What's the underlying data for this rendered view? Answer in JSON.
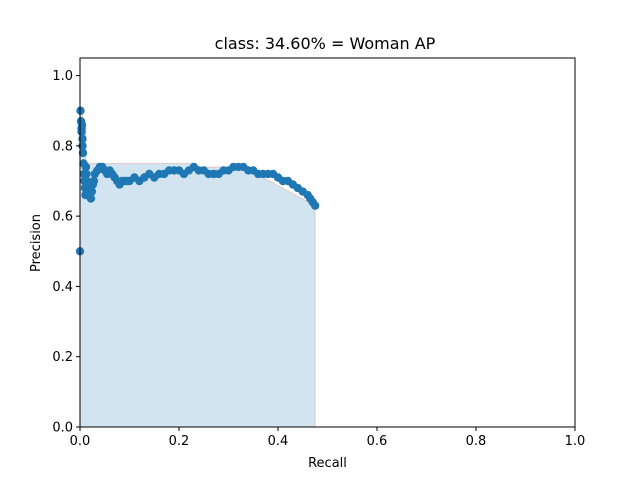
{
  "chart_data": {
    "type": "scatter",
    "title": "class: 34.60% = Woman AP",
    "xlabel": "Recall",
    "ylabel": "Precision",
    "xlim": [
      0,
      1
    ],
    "ylim": [
      0,
      1.05
    ],
    "xticks": [
      "0.0",
      "0.2",
      "0.4",
      "0.6",
      "0.8",
      "1.0"
    ],
    "yticks": [
      "0.0",
      "0.2",
      "0.4",
      "0.6",
      "0.8",
      "1.0"
    ],
    "grid": false,
    "colors": {
      "points": "#1f77b4",
      "fill": "#1f77b4",
      "step_line": "#d62728"
    },
    "series": [
      {
        "type": "scatter",
        "x": [
          0.0,
          0.001,
          0.002,
          0.003,
          0.003,
          0.004,
          0.005,
          0.005,
          0.006,
          0.007,
          0.008,
          0.009,
          0.01,
          0.011,
          0.012,
          0.013,
          0.014,
          0.016,
          0.018,
          0.02,
          0.022,
          0.024,
          0.026,
          0.028,
          0.03,
          0.035,
          0.04,
          0.045,
          0.05,
          0.055,
          0.06,
          0.065,
          0.07,
          0.075,
          0.08,
          0.085,
          0.09,
          0.095,
          0.1,
          0.11,
          0.12,
          0.13,
          0.14,
          0.15,
          0.16,
          0.17,
          0.18,
          0.19,
          0.2,
          0.21,
          0.22,
          0.23,
          0.24,
          0.25,
          0.26,
          0.27,
          0.28,
          0.29,
          0.3,
          0.31,
          0.32,
          0.33,
          0.34,
          0.35,
          0.36,
          0.37,
          0.38,
          0.39,
          0.4,
          0.41,
          0.42,
          0.43,
          0.44,
          0.45,
          0.46,
          0.465,
          0.47,
          0.475
        ],
        "y": [
          0.5,
          0.9,
          0.87,
          0.85,
          0.84,
          0.86,
          0.82,
          0.8,
          0.78,
          0.75,
          0.72,
          0.7,
          0.68,
          0.66,
          0.74,
          0.72,
          0.7,
          0.68,
          0.67,
          0.66,
          0.65,
          0.67,
          0.69,
          0.7,
          0.72,
          0.73,
          0.74,
          0.74,
          0.73,
          0.72,
          0.73,
          0.72,
          0.71,
          0.7,
          0.69,
          0.7,
          0.7,
          0.7,
          0.7,
          0.71,
          0.7,
          0.71,
          0.72,
          0.71,
          0.72,
          0.72,
          0.73,
          0.73,
          0.73,
          0.72,
          0.73,
          0.74,
          0.73,
          0.73,
          0.72,
          0.72,
          0.72,
          0.73,
          0.73,
          0.74,
          0.74,
          0.74,
          0.73,
          0.73,
          0.72,
          0.72,
          0.72,
          0.72,
          0.71,
          0.7,
          0.7,
          0.69,
          0.68,
          0.67,
          0.66,
          0.65,
          0.64,
          0.63
        ]
      }
    ],
    "fill_envelope": {
      "x": [
        0.0,
        0.0,
        0.005,
        0.005,
        0.012,
        0.012,
        0.23,
        0.23,
        0.33,
        0.33,
        0.475,
        0.475
      ],
      "y": [
        0.0,
        0.9,
        0.9,
        0.86,
        0.86,
        0.75,
        0.75,
        0.74,
        0.74,
        0.74,
        0.63,
        0.0
      ]
    }
  }
}
